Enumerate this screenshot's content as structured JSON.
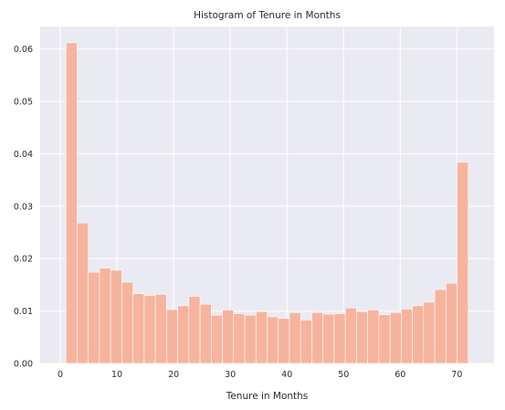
{
  "chart_data": {
    "type": "bar",
    "title": "Histogram of Tenure in Months",
    "xlabel": "Tenure in Months",
    "ylabel": "",
    "xlim": [
      -3.55,
      76.55
    ],
    "ylim": [
      0,
      0.0643
    ],
    "x_ticks": [
      0,
      10,
      20,
      30,
      40,
      50,
      60,
      70
    ],
    "y_ticks": [
      0.0,
      0.01,
      0.02,
      0.03,
      0.04,
      0.05,
      0.06
    ],
    "y_tick_labels": [
      "0.00",
      "0.01",
      "0.02",
      "0.03",
      "0.04",
      "0.05",
      "0.06"
    ],
    "bin_start": 1,
    "bin_end": 72,
    "values": [
      0.0612,
      0.0268,
      0.0174,
      0.0182,
      0.0178,
      0.0155,
      0.0133,
      0.013,
      0.0132,
      0.0103,
      0.011,
      0.0128,
      0.0113,
      0.0092,
      0.0102,
      0.0095,
      0.0092,
      0.0099,
      0.0089,
      0.0086,
      0.0097,
      0.0083,
      0.0097,
      0.0094,
      0.0095,
      0.0106,
      0.0099,
      0.0102,
      0.0093,
      0.0097,
      0.0104,
      0.011,
      0.0117,
      0.0141,
      0.0153,
      0.0384
    ],
    "grid": true,
    "colors": {
      "bar": "#f6b39e",
      "bar_edge": "#ffffff",
      "plot_background": "#eaeaf2",
      "grid": "#ffffff"
    }
  }
}
